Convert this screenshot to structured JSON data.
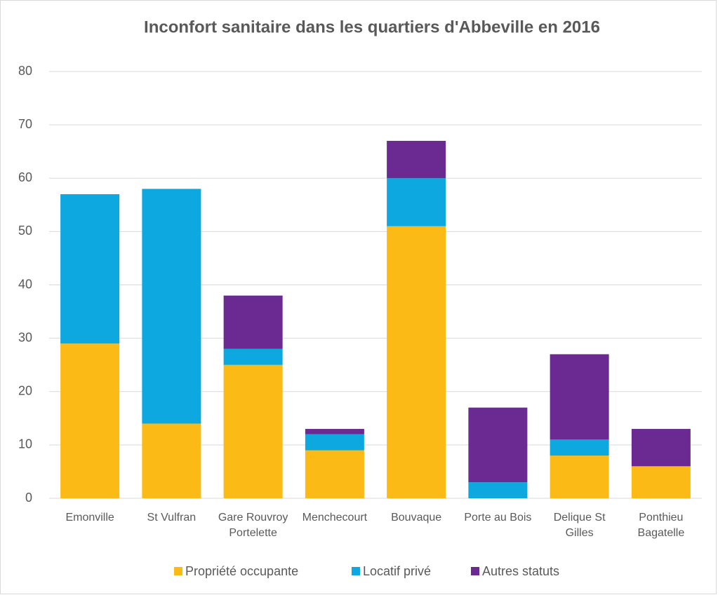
{
  "chart_data": {
    "type": "stacked_bar",
    "title": "Inconfort sanitaire dans les quartiers d'Abbeville en 2016",
    "categories": [
      "Emonville",
      "St Vulfran",
      "Gare Rouvroy Portelette",
      "Menchecourt",
      "Bouvaque",
      "Porte au Bois",
      "Delique St Gilles",
      "Ponthieu Bagatelle"
    ],
    "series": [
      {
        "name": "Propriété occupante",
        "color": "#FBBA15",
        "values": [
          29,
          14,
          25,
          9,
          51,
          0,
          8,
          6
        ]
      },
      {
        "name": "Locatif privé",
        "color": "#0CA8DF",
        "values": [
          28,
          44,
          3,
          3,
          9,
          3,
          3,
          0
        ]
      },
      {
        "name": "Autres statuts",
        "color": "#6B2A91",
        "values": [
          0,
          0,
          10,
          1,
          7,
          14,
          16,
          7
        ]
      }
    ],
    "ylim": [
      0,
      80
    ],
    "yticks": [
      0,
      10,
      20,
      30,
      40,
      50,
      60,
      70,
      80
    ],
    "grid": true,
    "legend": "bottom"
  }
}
